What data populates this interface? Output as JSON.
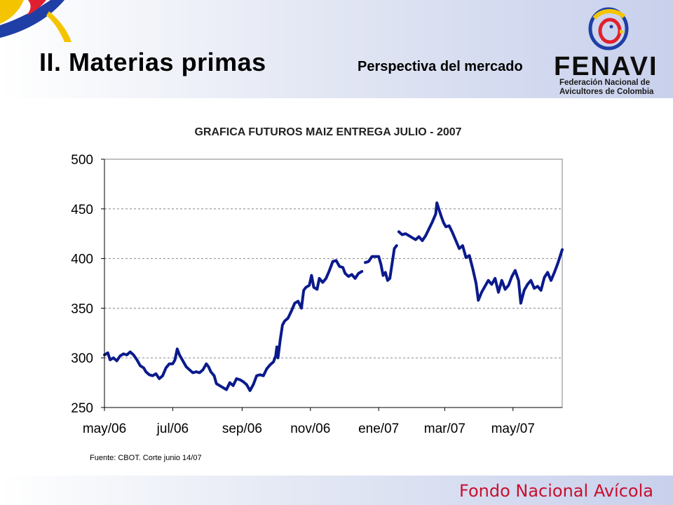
{
  "header": {
    "title": "II. Materias primas",
    "subtitle": "Perspectiva del mercado"
  },
  "logo": {
    "name": "FENAVI",
    "line1": "Federación Nacional de",
    "line2": "Avicultores de Colombia"
  },
  "footer": {
    "brand": "Fondo Nacional Avícola",
    "brand_color": "#c8102e"
  },
  "chart_data": {
    "type": "line",
    "title": "GRAFICA FUTUROS MAIZ ENTREGA JULIO - 2007",
    "xlabel": "",
    "ylabel": "",
    "ylim": [
      250,
      500
    ],
    "yticks": [
      250,
      300,
      350,
      400,
      450,
      500
    ],
    "xlim": [
      "2006-05-01",
      "2007-06-14"
    ],
    "xticks": [
      {
        "date": "2006-05-01",
        "label": "may/06"
      },
      {
        "date": "2006-07-01",
        "label": "jul/06"
      },
      {
        "date": "2006-09-01",
        "label": "sep/06"
      },
      {
        "date": "2006-11-01",
        "label": "nov/06"
      },
      {
        "date": "2007-01-01",
        "label": "ene/07"
      },
      {
        "date": "2007-03-01",
        "label": "mar/07"
      },
      {
        "date": "2007-05-01",
        "label": "may/07"
      }
    ],
    "grid": "horizontal dashed",
    "line_color": "#0a1a8c",
    "series": [
      {
        "points": [
          [
            "2006-05-01",
            303
          ],
          [
            "2006-05-04",
            305
          ],
          [
            "2006-05-06",
            298
          ],
          [
            "2006-05-09",
            300
          ],
          [
            "2006-05-12",
            297
          ],
          [
            "2006-05-15",
            302
          ],
          [
            "2006-05-18",
            304
          ],
          [
            "2006-05-21",
            303
          ],
          [
            "2006-05-24",
            306
          ],
          [
            "2006-05-27",
            303
          ],
          [
            "2006-05-30",
            298
          ],
          [
            "2006-06-02",
            292
          ],
          [
            "2006-06-05",
            290
          ],
          [
            "2006-06-07",
            286
          ],
          [
            "2006-06-10",
            283
          ],
          [
            "2006-06-13",
            282
          ],
          [
            "2006-06-16",
            284
          ],
          [
            "2006-06-19",
            279
          ],
          [
            "2006-06-22",
            282
          ],
          [
            "2006-06-25",
            290
          ],
          [
            "2006-06-28",
            294
          ],
          [
            "2006-07-01",
            294
          ],
          [
            "2006-07-03",
            298
          ],
          [
            "2006-07-05",
            309
          ],
          [
            "2006-07-07",
            303
          ],
          [
            "2006-07-10",
            297
          ],
          [
            "2006-07-13",
            291
          ],
          [
            "2006-07-16",
            288
          ],
          [
            "2006-07-19",
            285
          ],
          [
            "2006-07-22",
            286
          ],
          [
            "2006-07-25",
            285
          ],
          [
            "2006-07-28",
            288
          ],
          [
            "2006-07-31",
            294
          ],
          [
            "2006-08-02",
            291
          ],
          [
            "2006-08-04",
            286
          ],
          [
            "2006-08-07",
            282
          ],
          [
            "2006-08-09",
            274
          ],
          [
            "2006-08-12",
            272
          ],
          [
            "2006-08-15",
            270
          ],
          [
            "2006-08-18",
            268
          ],
          [
            "2006-08-21",
            275
          ],
          [
            "2006-08-24",
            272
          ],
          [
            "2006-08-27",
            279
          ],
          [
            "2006-08-30",
            278
          ],
          [
            "2006-09-02",
            276
          ],
          [
            "2006-09-05",
            273
          ],
          [
            "2006-09-08",
            267
          ],
          [
            "2006-09-11",
            273
          ],
          [
            "2006-09-14",
            282
          ],
          [
            "2006-09-17",
            283
          ],
          [
            "2006-09-20",
            282
          ],
          [
            "2006-09-23",
            289
          ],
          [
            "2006-09-26",
            293
          ],
          [
            "2006-09-29",
            296
          ],
          [
            "2006-10-01",
            302
          ],
          [
            "2006-10-02",
            311
          ],
          [
            "2006-10-03",
            300
          ],
          [
            "2006-10-05",
            318
          ],
          [
            "2006-10-07",
            333
          ],
          [
            "2006-10-09",
            337
          ],
          [
            "2006-10-12",
            340
          ],
          [
            "2006-10-15",
            347
          ],
          [
            "2006-10-18",
            355
          ],
          [
            "2006-10-21",
            357
          ],
          [
            "2006-10-24",
            350
          ],
          [
            "2006-10-26",
            368
          ],
          [
            "2006-10-28",
            371
          ],
          [
            "2006-10-31",
            373
          ],
          [
            "2006-11-02",
            383
          ],
          [
            "2006-11-04",
            371
          ],
          [
            "2006-11-07",
            369
          ],
          [
            "2006-11-09",
            380
          ],
          [
            "2006-11-12",
            376
          ],
          [
            "2006-11-15",
            380
          ],
          [
            "2006-11-18",
            388
          ],
          [
            "2006-11-21",
            397
          ],
          [
            "2006-11-24",
            398
          ],
          [
            "2006-11-27",
            392
          ],
          [
            "2006-11-30",
            391
          ],
          [
            "2006-12-02",
            385
          ],
          [
            "2006-12-05",
            382
          ],
          [
            "2006-12-08",
            384
          ],
          [
            "2006-12-11",
            380
          ],
          [
            "2006-12-14",
            385
          ],
          [
            "2006-12-17",
            387
          ]
        ]
      },
      {
        "points": [
          [
            "2006-12-20",
            396
          ],
          [
            "2006-12-23",
            397
          ],
          [
            "2006-12-26",
            402
          ],
          [
            "2006-12-29",
            402
          ],
          [
            "2007-01-01",
            402
          ],
          [
            "2007-01-03",
            394
          ],
          [
            "2007-01-05",
            383
          ],
          [
            "2007-01-07",
            386
          ],
          [
            "2007-01-09",
            378
          ],
          [
            "2007-01-11",
            380
          ],
          [
            "2007-01-13",
            395
          ],
          [
            "2007-01-15",
            410
          ],
          [
            "2007-01-17",
            413
          ]
        ]
      },
      {
        "points": [
          [
            "2007-01-19",
            427
          ],
          [
            "2007-01-22",
            424
          ],
          [
            "2007-01-25",
            425
          ],
          [
            "2007-01-28",
            423
          ],
          [
            "2007-01-31",
            421
          ],
          [
            "2007-02-03",
            419
          ],
          [
            "2007-02-06",
            422
          ],
          [
            "2007-02-09",
            418
          ],
          [
            "2007-02-12",
            423
          ],
          [
            "2007-02-15",
            430
          ],
          [
            "2007-02-18",
            437
          ],
          [
            "2007-02-21",
            445
          ],
          [
            "2007-02-22",
            456
          ],
          [
            "2007-02-24",
            449
          ],
          [
            "2007-02-26",
            442
          ],
          [
            "2007-02-28",
            436
          ],
          [
            "2007-03-02",
            432
          ],
          [
            "2007-03-05",
            433
          ],
          [
            "2007-03-08",
            426
          ],
          [
            "2007-03-11",
            418
          ],
          [
            "2007-03-14",
            410
          ],
          [
            "2007-03-17",
            413
          ],
          [
            "2007-03-20",
            401
          ],
          [
            "2007-03-23",
            403
          ],
          [
            "2007-03-26",
            390
          ],
          [
            "2007-03-29",
            375
          ],
          [
            "2007-03-31",
            358
          ],
          [
            "2007-04-03",
            366
          ],
          [
            "2007-04-06",
            372
          ],
          [
            "2007-04-09",
            378
          ],
          [
            "2007-04-12",
            374
          ],
          [
            "2007-04-15",
            380
          ],
          [
            "2007-04-18",
            366
          ],
          [
            "2007-04-21",
            378
          ],
          [
            "2007-04-24",
            369
          ],
          [
            "2007-04-27",
            373
          ],
          [
            "2007-04-30",
            382
          ],
          [
            "2007-05-03",
            388
          ],
          [
            "2007-05-06",
            378
          ],
          [
            "2007-05-08",
            355
          ],
          [
            "2007-05-11",
            368
          ],
          [
            "2007-05-14",
            374
          ],
          [
            "2007-05-17",
            378
          ],
          [
            "2007-05-20",
            370
          ],
          [
            "2007-05-23",
            372
          ],
          [
            "2007-05-26",
            368
          ],
          [
            "2007-05-29",
            381
          ],
          [
            "2007-06-01",
            386
          ],
          [
            "2007-06-04",
            378
          ],
          [
            "2007-06-07",
            386
          ],
          [
            "2007-06-10",
            395
          ],
          [
            "2007-06-12",
            402
          ],
          [
            "2007-06-14",
            409
          ]
        ]
      }
    ]
  },
  "source_note": "Fuente: CBOT.  Corte junio 14/07"
}
